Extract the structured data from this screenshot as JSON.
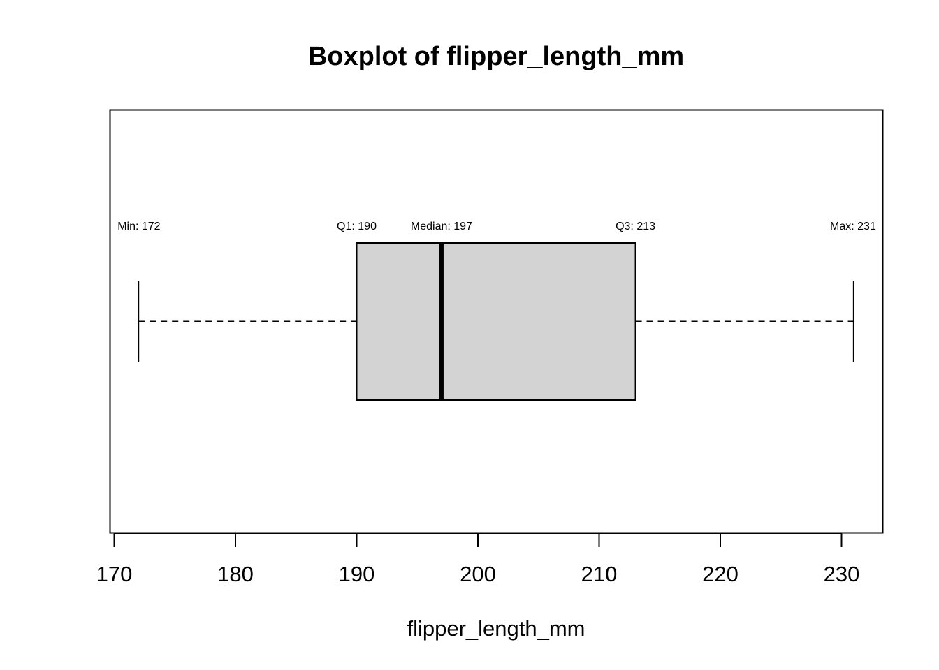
{
  "chart_data": {
    "type": "boxplot",
    "orientation": "horizontal",
    "title": "Boxplot of flipper_length_mm",
    "xlabel": "flipper_length_mm",
    "ylabel": "",
    "xlim": [
      170,
      233
    ],
    "xticks": [
      170,
      180,
      190,
      200,
      210,
      220,
      230
    ],
    "grid": false,
    "stats": {
      "min": 172,
      "q1": 190,
      "median": 197,
      "q3": 213,
      "max": 231
    },
    "annotations": [
      {
        "key": "min",
        "text": "Min: 172",
        "value": 172
      },
      {
        "key": "q1",
        "text": "Q1: 190",
        "value": 190
      },
      {
        "key": "median",
        "text": "Median: 197",
        "value": 197
      },
      {
        "key": "q3",
        "text": "Q3: 213",
        "value": 213
      },
      {
        "key": "max",
        "text": "Max: 231",
        "value": 231
      }
    ],
    "colors": {
      "box_fill": "#d3d3d3",
      "stroke": "#000000"
    }
  }
}
